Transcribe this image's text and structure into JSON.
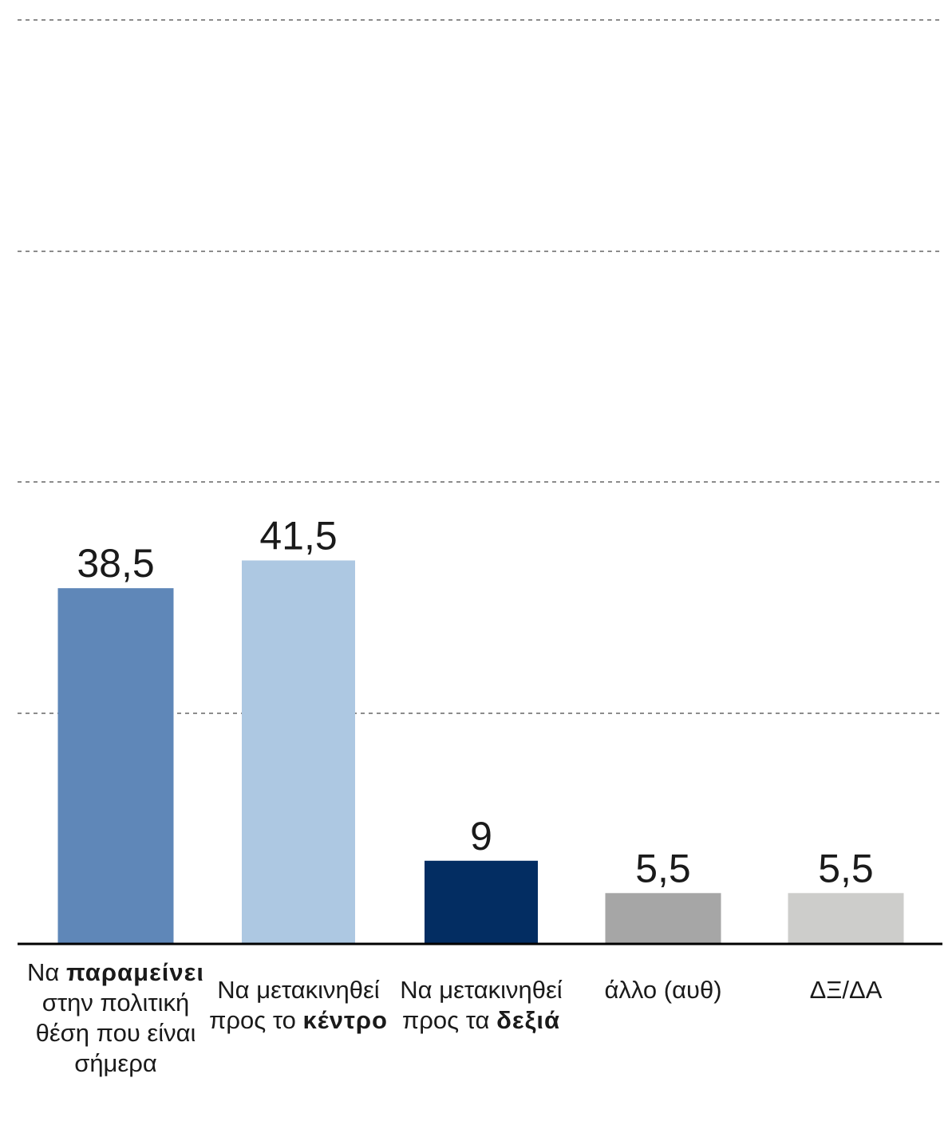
{
  "chart_data": {
    "type": "bar",
    "title": "",
    "xlabel": "",
    "ylabel": "",
    "ylim": [
      0,
      100
    ],
    "grid": true,
    "categories": [
      [
        "Να ",
        "παραμείνει",
        " στην πολιτική θέση που είναι σήμερα"
      ],
      [
        "Να μετακινηθεί προς το ",
        "κέντρο",
        ""
      ],
      [
        "Να μετακινηθεί προς τα ",
        "δεξιά",
        ""
      ],
      [
        "άλλο (αυθ)",
        "",
        ""
      ],
      [
        "ΔΞ/ΔΑ",
        "",
        ""
      ]
    ],
    "values": [
      38.5,
      41.5,
      9,
      5.5,
      5.5
    ],
    "value_labels": [
      "38,5",
      "41,5",
      "9",
      "5,5",
      "5,5"
    ],
    "colors": [
      "#5f87b8",
      "#adc8e2",
      "#032d62",
      "#a6a6a6",
      "#cdcdcb"
    ]
  }
}
